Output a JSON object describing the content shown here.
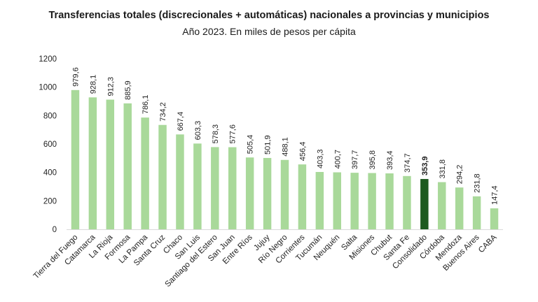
{
  "chart_data": {
    "type": "bar",
    "title": "Transferencias totales (discrecionales + automáticas) nacionales a provincias y municipios",
    "subtitle": "Año 2023. En miles de pesos per cápita",
    "xlabel": "",
    "ylabel": "",
    "ylim": [
      0,
      1200
    ],
    "yticks": [
      0,
      200,
      400,
      600,
      800,
      1000,
      1200
    ],
    "grid": false,
    "legend": "none",
    "categories": [
      "Tierra del Fuego",
      "Catamarca",
      "La Rioja",
      "Formosa",
      "La Pampa",
      "Santa Cruz",
      "Chaco",
      "San Luis",
      "Santiago del Estero",
      "San Juan",
      "Entre Ríos",
      "Jujuy",
      "Río Negro",
      "Corrientes",
      "Tucumán",
      "Neuquén",
      "Salta",
      "Misiones",
      "Chubut",
      "Santa Fe",
      "Consolidado",
      "Córdoba",
      "Mendoza",
      "Buenos Aires",
      "CABA"
    ],
    "values": [
      979.6,
      928.1,
      912.3,
      885.9,
      786.1,
      734.2,
      667.4,
      603.3,
      578.3,
      577.6,
      505.4,
      501.9,
      488.1,
      456.4,
      403.3,
      400.7,
      397.7,
      395.8,
      393.4,
      374.7,
      353.9,
      331.8,
      294.2,
      231.8,
      147.4
    ],
    "value_labels": [
      "979,6",
      "928,1",
      "912,3",
      "885,9",
      "786,1",
      "734,2",
      "667,4",
      "603,3",
      "578,3",
      "577,6",
      "505,4",
      "501,9",
      "488,1",
      "456,4",
      "403,3",
      "400,7",
      "397,7",
      "395,8",
      "393,4",
      "374,7",
      "353,9",
      "331,8",
      "294,2",
      "231,8",
      "147,4"
    ],
    "highlight_category": "Consolidado",
    "colors": {
      "bar": "#a9d99a",
      "highlight": "#1d5a20",
      "axis": "#d9d9d9",
      "text": "#222222"
    }
  }
}
